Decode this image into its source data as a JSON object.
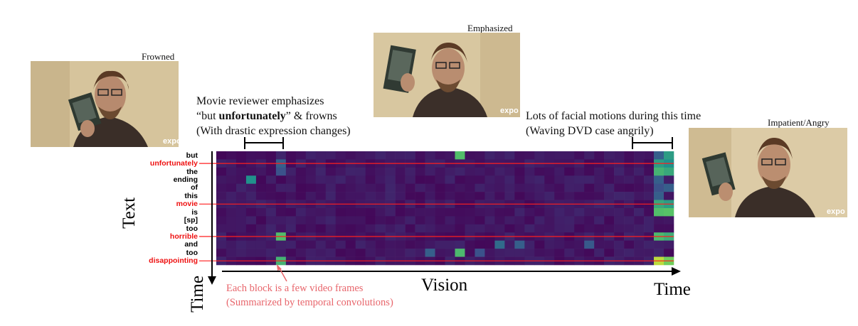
{
  "photos": [
    {
      "id": "frowned",
      "caption": "Frowned"
    },
    {
      "id": "emphasized",
      "caption": "Emphasized"
    },
    {
      "id": "angry",
      "caption": "Impatient/Angry"
    }
  ],
  "photo_watermark": "expo",
  "annotations": {
    "left_line1": "Movie reviewer emphasizes",
    "left_line2_pre": "“but ",
    "left_line2_bold": "unfortunately",
    "left_line2_post": "” & frowns",
    "left_line3": "(With drastic expression changes)",
    "right_line1": "Lots of facial motions during this time",
    "right_line2": "(Waving DVD case angrily)",
    "bottom_line1": "Each block is a few video frames",
    "bottom_line2": "(Summarized by temporal convolutions)"
  },
  "axes": {
    "text_label": "Text",
    "time_vertical_label": "Time",
    "vision_label": "Vision",
    "time_horizontal_label": "Time"
  },
  "colors": {
    "background_cell": "#461468",
    "highlight_line": "#ff1f1f",
    "note_red": "#e8656b"
  },
  "chart_data": {
    "type": "heatmap",
    "rows": [
      "but",
      "unfortunately",
      "the",
      "ending",
      "of",
      "this",
      "movie",
      "is",
      "[sp]",
      "too",
      "horrible",
      "and",
      "too",
      "disappointing"
    ],
    "highlighted_rows": [
      "unfortunately",
      "movie",
      "horrible",
      "disappointing"
    ],
    "n_cols": 46,
    "cells": [
      {
        "row": 0,
        "col": 24,
        "v": 0.7
      },
      {
        "row": 0,
        "col": 45,
        "v": 0.55
      },
      {
        "row": 0,
        "col": 44,
        "v": 0.3
      },
      {
        "row": 1,
        "col": 6,
        "v": 0.3
      },
      {
        "row": 1,
        "col": 44,
        "v": 0.55
      },
      {
        "row": 1,
        "col": 45,
        "v": 0.5
      },
      {
        "row": 2,
        "col": 6,
        "v": 0.25
      },
      {
        "row": 2,
        "col": 44,
        "v": 0.65
      },
      {
        "row": 2,
        "col": 45,
        "v": 0.6
      },
      {
        "row": 3,
        "col": 3,
        "v": 0.5
      },
      {
        "row": 3,
        "col": 44,
        "v": 0.3
      },
      {
        "row": 4,
        "col": 44,
        "v": 0.25
      },
      {
        "row": 4,
        "col": 45,
        "v": 0.3
      },
      {
        "row": 5,
        "col": 44,
        "v": 0.3
      },
      {
        "row": 6,
        "col": 44,
        "v": 0.6
      },
      {
        "row": 6,
        "col": 45,
        "v": 0.55
      },
      {
        "row": 7,
        "col": 44,
        "v": 0.7
      },
      {
        "row": 7,
        "col": 45,
        "v": 0.72
      },
      {
        "row": 10,
        "col": 6,
        "v": 0.7
      },
      {
        "row": 10,
        "col": 44,
        "v": 0.68
      },
      {
        "row": 10,
        "col": 45,
        "v": 0.62
      },
      {
        "row": 11,
        "col": 28,
        "v": 0.35
      },
      {
        "row": 11,
        "col": 30,
        "v": 0.3
      },
      {
        "row": 11,
        "col": 37,
        "v": 0.28
      },
      {
        "row": 12,
        "col": 21,
        "v": 0.3
      },
      {
        "row": 12,
        "col": 24,
        "v": 0.68
      },
      {
        "row": 12,
        "col": 26,
        "v": 0.25
      },
      {
        "row": 13,
        "col": 6,
        "v": 0.65
      },
      {
        "row": 13,
        "col": 44,
        "v": 0.9
      },
      {
        "row": 13,
        "col": 45,
        "v": 0.78
      }
    ]
  }
}
